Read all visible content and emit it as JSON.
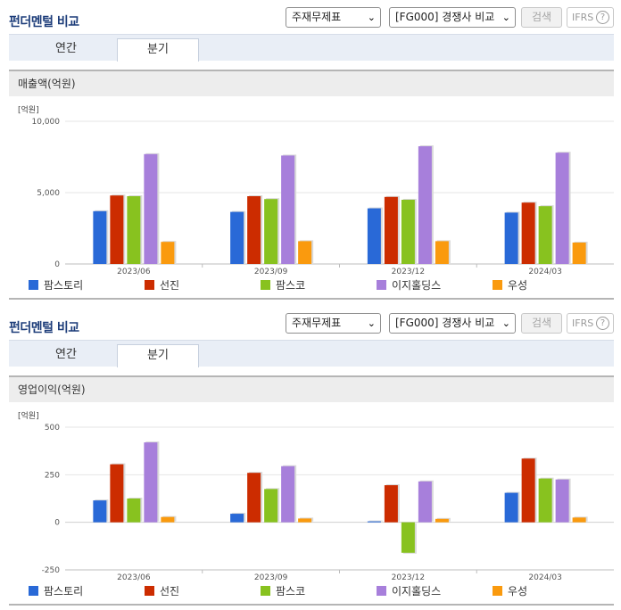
{
  "colors": {
    "팜스토리": "#2969d7",
    "선진": "#cc2c00",
    "팜스코": "#88c21f",
    "이지홀딩스": "#a77fdb",
    "우성": "#fa9a0e"
  },
  "panels": [
    {
      "title": "펀더멘털 비교",
      "select1": "주재무제표",
      "select2": "[FG000] 경쟁사 비교",
      "search_button": "검색",
      "ifrs_label": "IFRS",
      "help_icon": "?",
      "tabs": [
        "연간",
        "분기"
      ],
      "active_tab": "분기",
      "metric": "매출액(억원)",
      "unit_label": "[억원]"
    },
    {
      "title": "펀더멘털 비교",
      "select1": "주재무제표",
      "select2": "[FG000] 경쟁사 비교",
      "search_button": "검색",
      "ifrs_label": "IFRS",
      "help_icon": "?",
      "tabs": [
        "연간",
        "분기"
      ],
      "active_tab": "분기",
      "metric": "영업이익(억원)",
      "unit_label": "[억원]"
    }
  ],
  "chart_data": [
    {
      "type": "bar",
      "title": "매출액(억원)",
      "ylabel": "[억원]",
      "categories": [
        "2023/06",
        "2023/09",
        "2023/12",
        "2024/03"
      ],
      "ylim": [
        0,
        10000
      ],
      "yticks": [
        0,
        5000,
        10000
      ],
      "ytick_labels": [
        "0",
        "5,000",
        "10,000"
      ],
      "legend_position": "bottom",
      "series": [
        {
          "name": "팜스토리",
          "values": [
            3700,
            3650,
            3900,
            3600
          ]
        },
        {
          "name": "선진",
          "values": [
            4800,
            4750,
            4700,
            4300
          ]
        },
        {
          "name": "팜스코",
          "values": [
            4750,
            4550,
            4500,
            4050
          ]
        },
        {
          "name": "이지홀딩스",
          "values": [
            7700,
            7600,
            8250,
            7800
          ]
        },
        {
          "name": "우성",
          "values": [
            1550,
            1600,
            1600,
            1500
          ]
        }
      ]
    },
    {
      "type": "bar",
      "title": "영업이익(억원)",
      "ylabel": "[억원]",
      "categories": [
        "2023/06",
        "2023/09",
        "2023/12",
        "2024/03"
      ],
      "ylim": [
        -250,
        500
      ],
      "yticks": [
        -250,
        0,
        250,
        500
      ],
      "ytick_labels": [
        "-250",
        "0",
        "250",
        "500"
      ],
      "legend_position": "bottom",
      "series": [
        {
          "name": "팜스토리",
          "values": [
            115,
            45,
            5,
            155
          ]
        },
        {
          "name": "선진",
          "values": [
            305,
            260,
            195,
            335
          ]
        },
        {
          "name": "팜스코",
          "values": [
            125,
            175,
            -160,
            230
          ]
        },
        {
          "name": "이지홀딩스",
          "values": [
            420,
            295,
            215,
            225
          ]
        },
        {
          "name": "우성",
          "values": [
            28,
            20,
            18,
            25
          ]
        }
      ]
    }
  ]
}
